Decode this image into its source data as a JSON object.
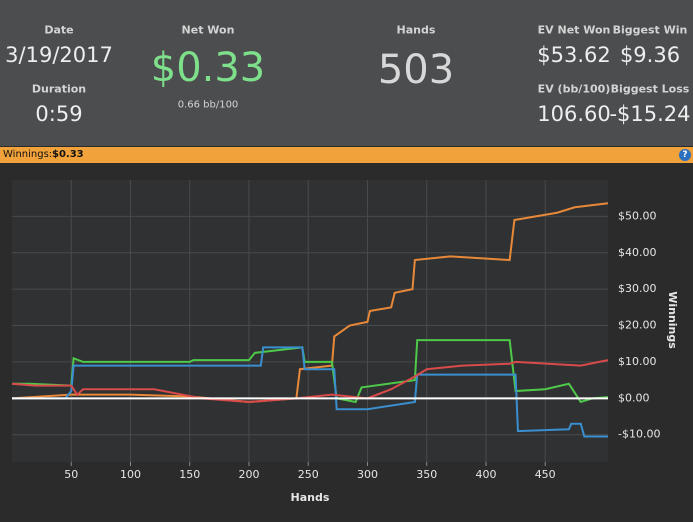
{
  "header": {
    "date_label": "Date",
    "date": "3/19/2017",
    "duration_label": "Duration",
    "duration": "0:59",
    "net_won_label": "Net Won",
    "net_won": "$0.33",
    "bb_per_100": "0.66 bb/100",
    "hands_label": "Hands",
    "hands": "503",
    "ev_net_won_label": "EV Net Won",
    "ev_net_won": "$53.62",
    "biggest_win_label": "Biggest Win",
    "biggest_win": "$9.36",
    "ev_bb_label": "EV (bb/100)",
    "ev_bb": "106.60",
    "biggest_loss_label": "Biggest Loss",
    "biggest_loss": "-$15.24"
  },
  "winnings_bar": {
    "label": "Winnings:",
    "value": "$0.33",
    "help": "?"
  },
  "chart_data": {
    "type": "line",
    "x_label": "Hands",
    "y_label": "Winnings",
    "xlim": [
      0,
      503
    ],
    "xticks": [
      50,
      100,
      150,
      200,
      250,
      300,
      350,
      400,
      450
    ],
    "ylim": [
      -17.5,
      60
    ],
    "yticks": [
      {
        "value": -10,
        "label": "-$10.00"
      },
      {
        "value": 0,
        "label": "$0.00"
      },
      {
        "value": 10,
        "label": "$10.00"
      },
      {
        "value": 20,
        "label": "$20.00"
      },
      {
        "value": 30,
        "label": "$30.00"
      },
      {
        "value": 40,
        "label": "$40.00"
      },
      {
        "value": 50,
        "label": "$50.00"
      }
    ],
    "grid": true,
    "series": [
      {
        "color": "#e8893a",
        "x": [
          0,
          50,
          100,
          150,
          200,
          240,
          243,
          270,
          272,
          285,
          300,
          302,
          320,
          323,
          338,
          340,
          370,
          420,
          424,
          460,
          475,
          503
        ],
        "values": [
          0,
          1,
          1,
          0.5,
          -1,
          0,
          8,
          9,
          17,
          20,
          21,
          24,
          25,
          29,
          30,
          38,
          39,
          38,
          49,
          51,
          52.5,
          53.6
        ]
      },
      {
        "color": "#4ec94a",
        "x": [
          0,
          15,
          50,
          52,
          60,
          150,
          153,
          200,
          205,
          245,
          247,
          270,
          274,
          290,
          295,
          340,
          342,
          420,
          425,
          450,
          470,
          480,
          490,
          503
        ],
        "values": [
          4,
          4,
          3.5,
          11,
          10,
          10,
          10.5,
          10.5,
          12.5,
          14,
          10,
          10,
          0,
          -1,
          3,
          5,
          16,
          16,
          2,
          2.5,
          4,
          -1,
          0,
          0.33
        ]
      },
      {
        "color": "#3a8fd0",
        "x": [
          0,
          45,
          50,
          52,
          210,
          212,
          245,
          247,
          272,
          274,
          300,
          340,
          342,
          425,
          427,
          470,
          472,
          480,
          483,
          503
        ],
        "values": [
          0,
          0,
          2,
          9,
          9,
          14,
          14,
          8,
          8,
          -3,
          -3,
          -1,
          6.5,
          6.5,
          -9,
          -8.5,
          -7,
          -7,
          -10.5,
          -10.5
        ]
      },
      {
        "color": "#d94b4b",
        "x": [
          0,
          20,
          50,
          55,
          60,
          120,
          160,
          200,
          240,
          270,
          300,
          320,
          340,
          350,
          380,
          420,
          425,
          480,
          503
        ],
        "values": [
          4,
          3.5,
          3.5,
          1,
          2.5,
          2.5,
          0,
          -1,
          0,
          1,
          0,
          2.5,
          6,
          8,
          9,
          9.5,
          10,
          9,
          10.5
        ]
      }
    ]
  }
}
